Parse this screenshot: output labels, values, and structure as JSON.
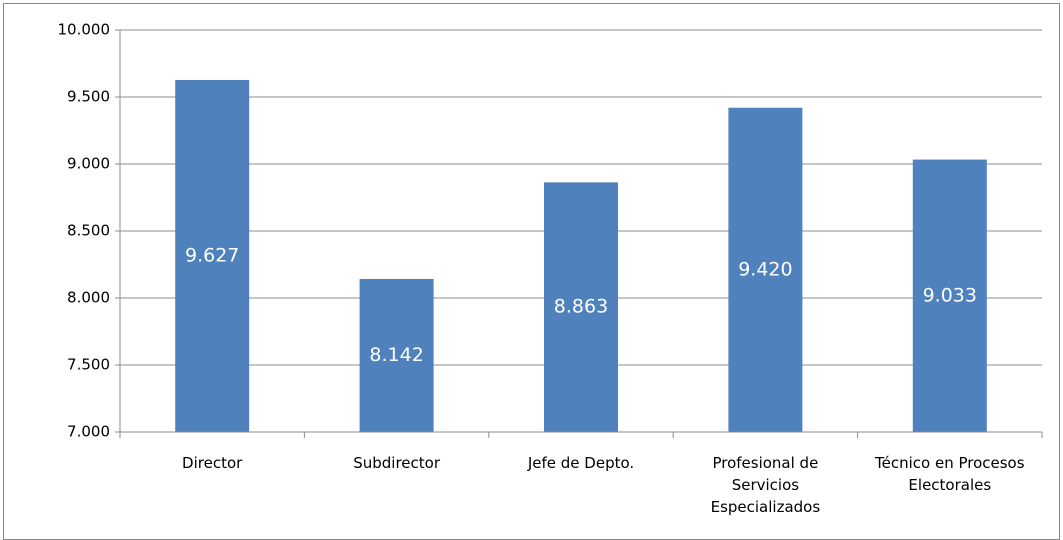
{
  "chart_data": {
    "type": "bar",
    "categories": [
      "Director",
      "Subdirector",
      "Jefe de Depto.",
      "Profesional de Servicios Especializados",
      "Técnico en Procesos Electorales"
    ],
    "values": [
      9.627,
      8.142,
      8.863,
      9.42,
      9.033
    ],
    "value_labels": [
      "9.627",
      "8.142",
      "8.863",
      "9.420",
      "9.033"
    ],
    "color": "#4f81bd",
    "ylim": [
      7,
      10
    ],
    "yticks": [
      {
        "value": 7,
        "label": "7.000"
      },
      {
        "value": 7.5,
        "label": "7.500"
      },
      {
        "value": 8,
        "label": "8.000"
      },
      {
        "value": 8.5,
        "label": "8.500"
      },
      {
        "value": 9,
        "label": "9.000"
      },
      {
        "value": 9.5,
        "label": "9.500"
      },
      {
        "value": 10,
        "label": "10.000"
      }
    ],
    "grid": true
  }
}
